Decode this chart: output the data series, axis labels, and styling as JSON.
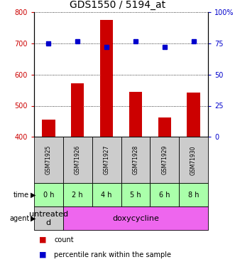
{
  "title": "GDS1550 / 5194_at",
  "samples": [
    "GSM71925",
    "GSM71926",
    "GSM71927",
    "GSM71928",
    "GSM71929",
    "GSM71930"
  ],
  "counts": [
    455,
    572,
    775,
    544,
    463,
    542
  ],
  "percentile_ranks": [
    75,
    77,
    72,
    77,
    72,
    77
  ],
  "time_labels": [
    "0 h",
    "2 h",
    "4 h",
    "5 h",
    "6 h",
    "8 h"
  ],
  "ylim_left": [
    400,
    800
  ],
  "ylim_right": [
    0,
    100
  ],
  "yticks_left": [
    400,
    500,
    600,
    700,
    800
  ],
  "yticks_right": [
    0,
    25,
    50,
    75,
    100
  ],
  "bar_color": "#cc0000",
  "dot_color": "#0000cc",
  "bar_width": 0.45,
  "time_bg_color": "#aaffaa",
  "agent_colors": [
    "#cccccc",
    "#ee66ee"
  ],
  "sample_bg_color": "#cccccc",
  "title_fontsize": 10,
  "tick_fontsize": 7,
  "legend_fontsize": 7,
  "cell_label_fontsize": 7,
  "sample_fontsize": 5.5
}
